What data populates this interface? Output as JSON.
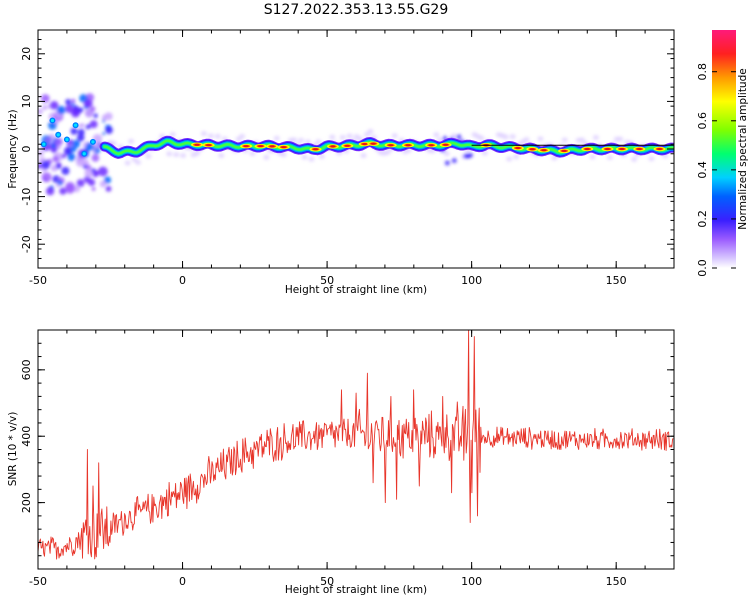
{
  "title": "S127.2022.353.13.55.G29",
  "chart_data": [
    {
      "type": "heatmap",
      "xlabel": "Height of straight line (km)",
      "ylabel": "Frequency (Hz)",
      "xlim": [
        -50,
        170
      ],
      "ylim": [
        -25,
        25
      ],
      "xticks": [
        "-50",
        "0",
        "50",
        "100",
        "150"
      ],
      "yticks": [
        "20",
        "10",
        "0",
        "-10",
        "-20"
      ],
      "track_center_hz": [
        [
          -48,
          1.5
        ],
        [
          -44,
          3
        ],
        [
          -40,
          1
        ],
        [
          -36,
          0.5
        ],
        [
          -32,
          2
        ],
        [
          -28,
          0.5
        ],
        [
          -22,
          -0.8
        ],
        [
          -16,
          -0.5
        ],
        [
          -10,
          0.8
        ],
        [
          -5,
          1.5
        ],
        [
          0,
          1
        ],
        [
          10,
          0.8
        ],
        [
          20,
          0.6
        ],
        [
          30,
          0.6
        ],
        [
          40,
          0.2
        ],
        [
          45,
          -0.2
        ],
        [
          50,
          0.5
        ],
        [
          55,
          0.6
        ],
        [
          60,
          0.8
        ],
        [
          65,
          1.2
        ],
        [
          70,
          0.8
        ],
        [
          80,
          0.8
        ],
        [
          90,
          0.8
        ],
        [
          95,
          1.2
        ],
        [
          100,
          0.5
        ],
        [
          105,
          0.8
        ],
        [
          110,
          0.5
        ],
        [
          120,
          0
        ],
        [
          130,
          -0.5
        ],
        [
          140,
          0
        ],
        [
          150,
          0
        ],
        [
          160,
          0
        ],
        [
          168,
          0
        ]
      ]
    },
    {
      "type": "line",
      "xlabel": "Height of straight line (km)",
      "ylabel": "SNR (10 * v/v)",
      "xlim": [
        -50,
        170
      ],
      "ylim": [
        0,
        720
      ],
      "xticks": [
        "-50",
        "0",
        "50",
        "100",
        "150"
      ],
      "yticks": [
        "600",
        "400",
        "200"
      ],
      "trend": [
        [
          -50,
          60
        ],
        [
          -45,
          60
        ],
        [
          -40,
          70
        ],
        [
          -35,
          95
        ],
        [
          -30,
          110
        ],
        [
          -25,
          120
        ],
        [
          -20,
          150
        ],
        [
          -15,
          170
        ],
        [
          -10,
          185
        ],
        [
          -5,
          210
        ],
        [
          0,
          230
        ],
        [
          10,
          285
        ],
        [
          20,
          340
        ],
        [
          30,
          375
        ],
        [
          40,
          395
        ],
        [
          50,
          405
        ],
        [
          60,
          405
        ],
        [
          70,
          405
        ],
        [
          80,
          400
        ],
        [
          90,
          400
        ],
        [
          100,
          400
        ],
        [
          110,
          395
        ],
        [
          120,
          395
        ],
        [
          130,
          390
        ],
        [
          140,
          390
        ],
        [
          150,
          390
        ],
        [
          160,
          390
        ],
        [
          170,
          390
        ]
      ],
      "spikes": [
        [
          -33,
          360
        ],
        [
          -31,
          250
        ],
        [
          -29,
          320
        ],
        [
          -27,
          120
        ],
        [
          -25,
          80
        ],
        [
          55,
          540
        ],
        [
          60,
          530
        ],
        [
          64,
          590
        ],
        [
          66,
          260
        ],
        [
          70,
          200
        ],
        [
          72,
          520
        ],
        [
          74,
          210
        ],
        [
          80,
          540
        ],
        [
          82,
          250
        ],
        [
          90,
          520
        ],
        [
          93,
          230
        ],
        [
          97,
          490
        ],
        [
          99,
          720
        ],
        [
          100,
          230
        ],
        [
          101,
          700
        ],
        [
          102,
          160
        ],
        [
          99.5,
          140
        ]
      ],
      "color": "#e8352a"
    }
  ],
  "colorbar": {
    "label": "Normalized spectral amplitude",
    "ticks": [
      "0.0",
      "0.2",
      "0.4",
      "0.6",
      "0.8"
    ]
  }
}
